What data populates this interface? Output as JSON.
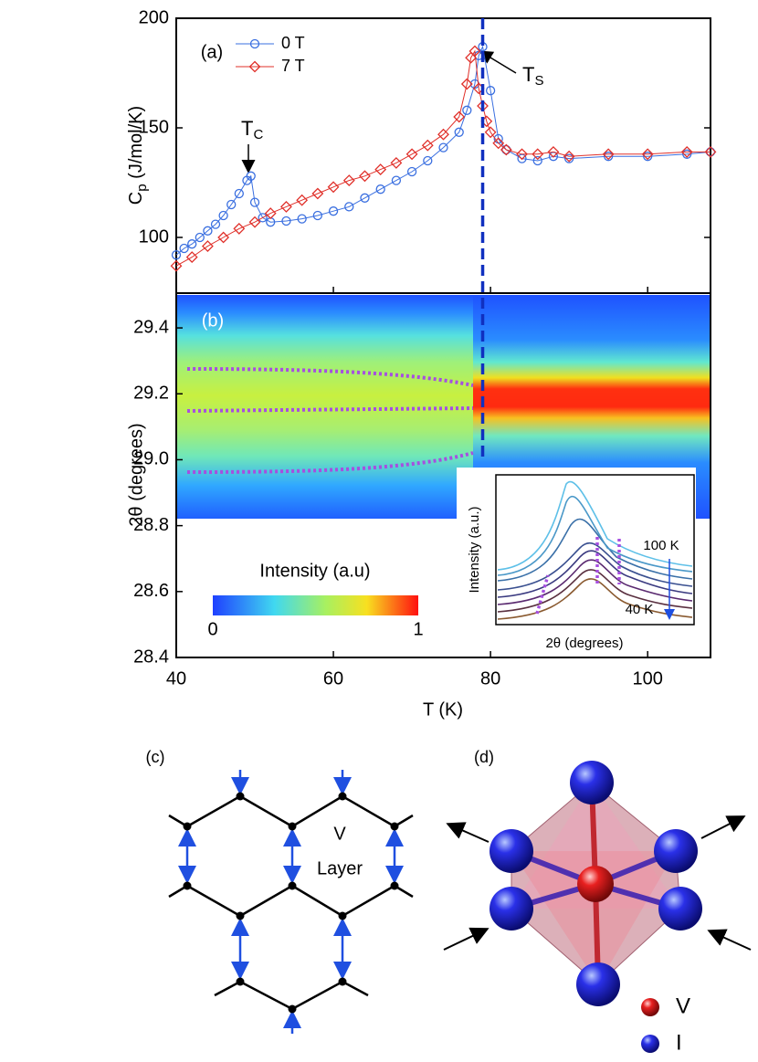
{
  "chart_data": [
    {
      "type": "line",
      "panel_label": "(a)",
      "ylabel": {
        "main": "C",
        "sub": "p",
        "rest": " (J/mol/K)"
      },
      "xlim": [
        40,
        108
      ],
      "ylim": [
        75,
        200
      ],
      "yticks": [
        100,
        150,
        200
      ],
      "legend": "upper left",
      "annotations": [
        {
          "main": "T",
          "sub": "C"
        },
        {
          "main": "T",
          "sub": "S"
        }
      ],
      "transition_x": 79,
      "series": [
        {
          "name": "0 T",
          "color": "#3a6fe0",
          "marker": "circle",
          "x": [
            40,
            41,
            42,
            43,
            44,
            45,
            46,
            47,
            48,
            49,
            49.5,
            50,
            51,
            52,
            54,
            56,
            58,
            60,
            62,
            64,
            66,
            68,
            70,
            72,
            74,
            76,
            77,
            78,
            78.5,
            79,
            80,
            81,
            82,
            84,
            86,
            88,
            90,
            95,
            100,
            105,
            108
          ],
          "values": [
            92,
            95,
            97,
            100,
            103,
            106,
            110,
            115,
            120,
            126,
            128,
            116,
            109,
            107,
            107.5,
            108.5,
            110,
            112,
            114,
            118,
            122,
            126,
            130,
            135,
            141,
            148,
            158,
            170,
            183,
            187,
            167,
            145,
            140,
            136,
            135,
            137,
            136,
            137,
            137,
            138,
            139
          ]
        },
        {
          "name": "7 T",
          "color": "#e0302a",
          "marker": "diamond",
          "x": [
            40,
            42,
            44,
            46,
            48,
            50,
            52,
            54,
            56,
            58,
            60,
            62,
            64,
            66,
            68,
            70,
            72,
            74,
            76,
            77,
            77.5,
            78,
            78.5,
            79,
            79.5,
            80,
            81,
            82,
            84,
            86,
            88,
            90,
            95,
            100,
            105,
            108
          ],
          "values": [
            87,
            91,
            96,
            100,
            104,
            107,
            111,
            114,
            117,
            120,
            123,
            126,
            128,
            131,
            134,
            138,
            142,
            147,
            155,
            170,
            182,
            185,
            168,
            160,
            153,
            148,
            143,
            140,
            138,
            138,
            139,
            137,
            138,
            138,
            139,
            139
          ]
        }
      ]
    },
    {
      "type": "heatmap",
      "panel_label": "(b)",
      "xlabel": "T (K)",
      "xlim": [
        40,
        108
      ],
      "xticks": [
        40,
        60,
        80,
        100
      ],
      "ylabel": "2θ (degrees)",
      "ylim": [
        28.4,
        29.5
      ],
      "yticks": [
        28.4,
        28.6,
        28.8,
        {
          "value": 29,
          "label": "29.0"
        },
        29.2,
        29.4
      ],
      "colorbar": {
        "label": "Intensity (a.u)",
        "ticks": [
          0,
          1
        ]
      },
      "inset": {
        "ylabel": "Intensity (a.u.)",
        "xlabel": "2θ (degrees)",
        "annotations": [
          "100 K",
          "40 K"
        ]
      }
    }
  ],
  "diagrams": {
    "c": {
      "label": "(c)",
      "text": [
        "V",
        "Layer"
      ]
    },
    "d": {
      "label": "(d)",
      "legend": [
        "V",
        "I"
      ]
    }
  }
}
